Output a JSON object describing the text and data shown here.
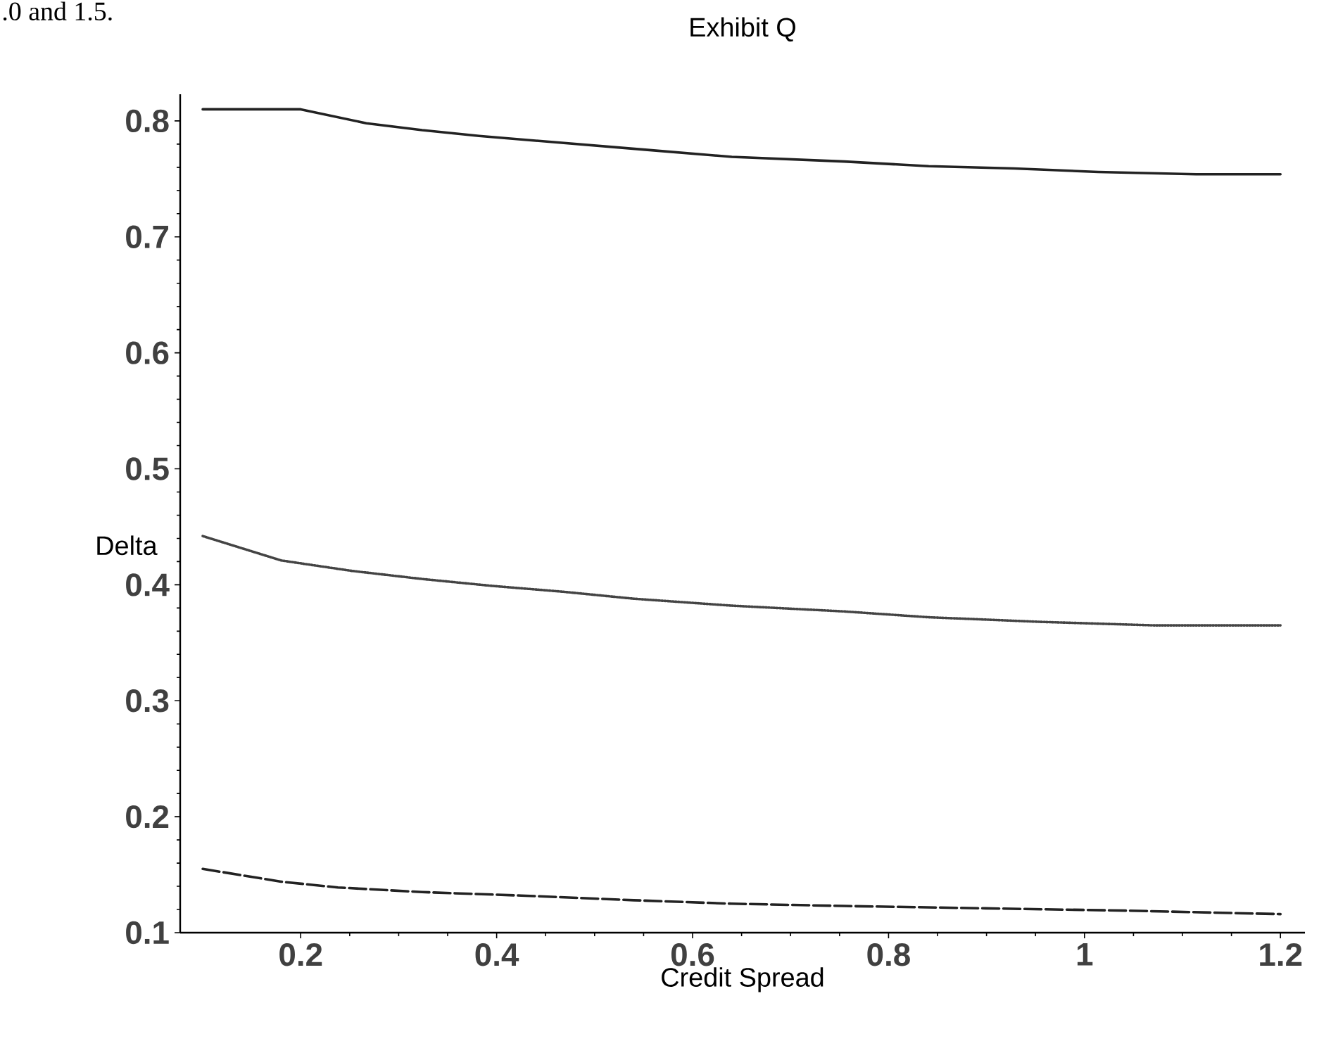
{
  "chart_data": {
    "type": "line",
    "title": "Exhibit Q",
    "xlabel": "Credit Spread",
    "ylabel": "Delta",
    "annotations": [
      ".0 and 1.5."
    ],
    "xlim": [
      0.077,
      1.225
    ],
    "ylim": [
      0.1,
      0.823
    ],
    "xticks": [
      0.2,
      0.4,
      0.6,
      0.8,
      1,
      1.2
    ],
    "yticks": [
      0.1,
      0.2,
      0.3,
      0.4,
      0.5,
      0.6,
      0.7,
      0.8
    ],
    "grid": false,
    "marker": "none",
    "series": [
      {
        "color": "#222222",
        "line_style": "solid",
        "x": [
          0.1,
          0.2,
          0.267,
          0.324,
          0.382,
          0.468,
          0.554,
          0.64,
          0.755,
          0.841,
          0.928,
          1.014,
          1.114,
          1.2
        ],
        "values": [
          0.81,
          0.81,
          0.798,
          0.792,
          0.787,
          0.781,
          0.775,
          0.769,
          0.765,
          0.761,
          0.759,
          0.756,
          0.754,
          0.754
        ]
      },
      {
        "color": "#444444",
        "line_style": "dotted",
        "x": [
          0.1,
          0.18,
          0.252,
          0.324,
          0.396,
          0.468,
          0.54,
          0.64,
          0.755,
          0.841,
          0.956,
          1.071,
          1.2
        ],
        "values": [
          0.442,
          0.421,
          0.412,
          0.405,
          0.399,
          0.394,
          0.388,
          0.382,
          0.377,
          0.372,
          0.368,
          0.365,
          0.365
        ]
      },
      {
        "color": "#222222",
        "line_style": "dashed",
        "x": [
          0.1,
          0.18,
          0.238,
          0.324,
          0.425,
          0.54,
          0.64,
          0.755,
          0.899,
          1.043,
          1.2
        ],
        "values": [
          0.155,
          0.144,
          0.139,
          0.135,
          0.132,
          0.128,
          0.125,
          0.123,
          0.121,
          0.119,
          0.116
        ]
      }
    ]
  }
}
